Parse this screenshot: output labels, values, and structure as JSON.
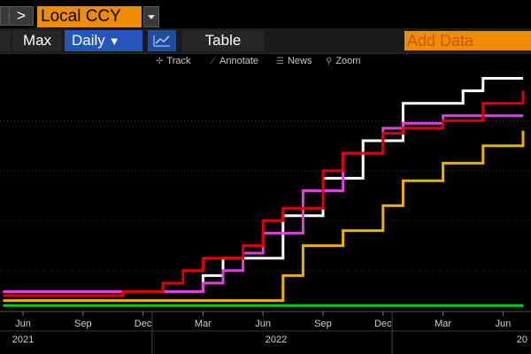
{
  "toolbar": {
    "back_glyph": "<",
    "forward_glyph": ">",
    "currency_label": "Local CCY",
    "range_label": "Max",
    "frequency_label": "Daily",
    "frequency_arrow": "▼",
    "table_label": "Table",
    "add_data_label": "Add Data"
  },
  "chart_tools": {
    "track": "Track",
    "annotate": "Annotate",
    "news": "News",
    "zoom": "Zoom"
  },
  "chart_data": {
    "type": "line",
    "x_tick_labels": [
      "Jun",
      "Sep",
      "Dec",
      "Mar",
      "Jun",
      "Sep",
      "Dec",
      "Mar",
      "Jun"
    ],
    "x_year_labels": [
      "2021",
      "2022",
      "20"
    ],
    "ylim": [
      0,
      4.5
    ],
    "series": [
      {
        "color": "#ffffff",
        "x": [
          "2021-05",
          "2021-12",
          "2022-02",
          "2022-03",
          "2022-04",
          "2022-06",
          "2022-07",
          "2022-08",
          "2022-09",
          "2022-10",
          "2022-11",
          "2022-12",
          "2023-01",
          "2023-02",
          "2023-04",
          "2023-05",
          "2023-07"
        ],
        "values": [
          0.08,
          0.08,
          0.08,
          0.4,
          0.75,
          0.75,
          1.6,
          1.6,
          2.35,
          2.35,
          3.1,
          3.1,
          3.85,
          3.85,
          4.1,
          4.35,
          4.35
        ]
      },
      {
        "color": "#e040e0",
        "x": [
          "2021-05",
          "2021-12",
          "2022-01",
          "2022-03",
          "2022-04",
          "2022-05",
          "2022-06",
          "2022-07",
          "2022-08",
          "2022-09",
          "2022-10",
          "2022-11",
          "2022-12",
          "2023-01",
          "2023-03",
          "2023-05",
          "2023-07"
        ],
        "values": [
          0.08,
          0.08,
          0.08,
          0.25,
          0.5,
          0.85,
          1.25,
          1.25,
          2.1,
          2.1,
          2.85,
          2.85,
          3.35,
          3.45,
          3.6,
          3.6,
          3.6
        ]
      },
      {
        "color": "#e00000",
        "x": [
          "2021-05",
          "2021-11",
          "2022-01",
          "2022-02",
          "2022-03",
          "2022-05",
          "2022-06",
          "2022-07",
          "2022-09",
          "2022-10",
          "2022-12",
          "2023-01",
          "2023-03",
          "2023-05",
          "2023-07"
        ],
        "values": [
          0.0,
          0.08,
          0.25,
          0.5,
          0.75,
          1.0,
          1.5,
          1.75,
          2.5,
          2.85,
          3.25,
          3.35,
          3.5,
          3.85,
          4.1
        ]
      },
      {
        "color": "#f0b000",
        "x": [
          "2021-05",
          "2022-06",
          "2022-07",
          "2022-08",
          "2022-09",
          "2022-10",
          "2022-12",
          "2023-01",
          "2023-03",
          "2023-05",
          "2023-07"
        ],
        "values": [
          -0.1,
          -0.1,
          0.4,
          1.0,
          1.0,
          1.3,
          1.8,
          2.3,
          2.65,
          3.0,
          3.3
        ]
      },
      {
        "color": "#00d020",
        "x": [
          "2021-05",
          "2023-07"
        ],
        "values": [
          -0.2,
          -0.2
        ]
      }
    ]
  }
}
